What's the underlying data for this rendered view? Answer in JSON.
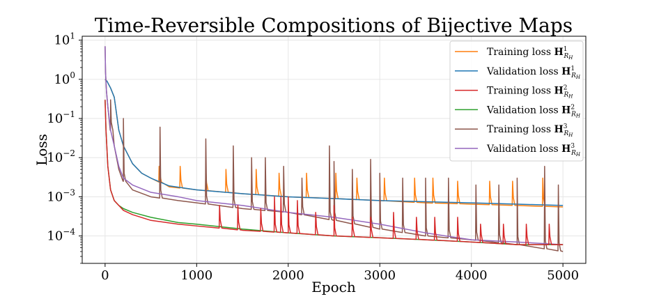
{
  "chart_data": {
    "type": "line",
    "title": "Time-Reversible Compositions of Bijective Maps",
    "xlabel": "Epoch",
    "ylabel": "Loss",
    "xlim": [
      -250,
      5250
    ],
    "ylim_log10": [
      -4.7,
      1.1
    ],
    "yscale": "log",
    "grid": true,
    "legend_position": "top-right",
    "x_ticks": [
      0,
      1000,
      2000,
      3000,
      4000,
      5000
    ],
    "y_ticks": [
      {
        "exp": 1,
        "label": "10^1"
      },
      {
        "exp": 0,
        "label": "10^0"
      },
      {
        "exp": -1,
        "label": "10^-1"
      },
      {
        "exp": -2,
        "label": "10^-2"
      },
      {
        "exp": -3,
        "label": "10^-3"
      },
      {
        "exp": -4,
        "label": "10^-4"
      }
    ],
    "series": [
      {
        "name": "Training loss H^1_{R_H}",
        "label_base": "Training loss",
        "sup": "1",
        "color": "#ff7f0e",
        "x": [
          0,
          20,
          60,
          100,
          150,
          200,
          300,
          400,
          500,
          700,
          1000,
          1500,
          2000,
          2500,
          3000,
          3500,
          4000,
          4500,
          5000
        ],
        "values": [
          1.0,
          0.9,
          0.6,
          0.35,
          0.05,
          0.02,
          0.007,
          0.004,
          0.003,
          0.0018,
          0.0015,
          0.0012,
          0.001,
          0.0009,
          0.0008,
          0.0007,
          0.00065,
          0.0006,
          0.00055
        ],
        "spikes": [
          {
            "x": 590,
            "peak": 0.006
          },
          {
            "x": 820,
            "peak": 0.006
          },
          {
            "x": 1100,
            "peak": 0.005
          },
          {
            "x": 1320,
            "peak": 0.005
          },
          {
            "x": 1650,
            "peak": 0.005
          },
          {
            "x": 1900,
            "peak": 0.004
          },
          {
            "x": 2200,
            "peak": 0.004
          },
          {
            "x": 2520,
            "peak": 0.004
          },
          {
            "x": 2750,
            "peak": 0.003
          },
          {
            "x": 3050,
            "peak": 0.003
          },
          {
            "x": 3380,
            "peak": 0.003
          },
          {
            "x": 3580,
            "peak": 0.003
          },
          {
            "x": 3850,
            "peak": 0.0025
          },
          {
            "x": 4200,
            "peak": 0.0025
          },
          {
            "x": 4450,
            "peak": 0.0025
          },
          {
            "x": 4780,
            "peak": 0.003
          }
        ]
      },
      {
        "name": "Validation loss H^1_{R_H}",
        "label_base": "Validation loss",
        "sup": "1",
        "color": "#1f77b4",
        "x": [
          0,
          20,
          60,
          100,
          150,
          200,
          300,
          400,
          500,
          700,
          1000,
          1500,
          2000,
          2500,
          3000,
          3500,
          4000,
          4500,
          5000
        ],
        "values": [
          1.0,
          0.9,
          0.6,
          0.35,
          0.05,
          0.02,
          0.007,
          0.004,
          0.003,
          0.0019,
          0.0015,
          0.0012,
          0.001,
          0.0009,
          0.0008,
          0.00075,
          0.0007,
          0.00065,
          0.0006
        ],
        "spikes": []
      },
      {
        "name": "Training loss H^2_{R_H}",
        "label_base": "Training loss",
        "sup": "2",
        "color": "#d62728",
        "x": [
          0,
          10,
          30,
          60,
          100,
          150,
          200,
          300,
          500,
          800,
          1000,
          1500,
          2000,
          2500,
          3000,
          3500,
          4000,
          4500,
          5000
        ],
        "values": [
          0.3,
          0.05,
          0.006,
          0.0015,
          0.0008,
          0.0006,
          0.00045,
          0.00035,
          0.00025,
          0.0002,
          0.00018,
          0.00014,
          0.00012,
          0.0001,
          9e-05,
          8e-05,
          7e-05,
          6e-05,
          6e-05
        ],
        "spikes": [
          {
            "x": 1250,
            "peak": 0.0006
          },
          {
            "x": 1450,
            "peak": 0.0006
          },
          {
            "x": 1700,
            "peak": 0.0005
          },
          {
            "x": 1850,
            "peak": 0.001
          },
          {
            "x": 1920,
            "peak": 0.001
          },
          {
            "x": 2000,
            "peak": 0.001
          },
          {
            "x": 2100,
            "peak": 0.0008
          },
          {
            "x": 2300,
            "peak": 0.0004
          },
          {
            "x": 2500,
            "peak": 0.0006
          },
          {
            "x": 2700,
            "peak": 0.0003
          },
          {
            "x": 2900,
            "peak": 0.0003
          },
          {
            "x": 3150,
            "peak": 0.0004
          },
          {
            "x": 3400,
            "peak": 0.0003
          },
          {
            "x": 3600,
            "peak": 0.0003
          },
          {
            "x": 3850,
            "peak": 0.0003
          },
          {
            "x": 4100,
            "peak": 0.0002
          },
          {
            "x": 4350,
            "peak": 0.0002
          },
          {
            "x": 4600,
            "peak": 0.0002
          },
          {
            "x": 4850,
            "peak": 0.0002
          }
        ]
      },
      {
        "name": "Validation loss H^2_{R_H}",
        "label_base": "Validation loss",
        "sup": "2",
        "color": "#2ca02c",
        "x": [
          0,
          10,
          30,
          60,
          100,
          150,
          200,
          300,
          500,
          800,
          1000,
          1500,
          2000,
          2500,
          3000,
          3500,
          4000,
          4500,
          5000
        ],
        "values": [
          0.3,
          0.05,
          0.006,
          0.0015,
          0.0008,
          0.0006,
          0.0005,
          0.0004,
          0.0003,
          0.00022,
          0.0002,
          0.00015,
          0.00012,
          0.0001,
          9e-05,
          8e-05,
          7e-05,
          6e-05,
          6e-05
        ],
        "spikes": []
      },
      {
        "name": "Training loss H^3_{R_H}",
        "label_base": "Training loss",
        "sup": "3",
        "color": "#8c564b",
        "x": [
          0,
          5,
          15,
          30,
          60,
          100,
          150,
          200,
          300,
          500,
          800,
          1000,
          1500,
          2000,
          2500,
          3000,
          3500,
          4000,
          4500,
          5000
        ],
        "values": [
          7.0,
          1.5,
          0.5,
          0.2,
          0.05,
          0.02,
          0.005,
          0.0025,
          0.0015,
          0.001,
          0.0008,
          0.0007,
          0.0005,
          0.0004,
          0.00025,
          0.00015,
          0.0001,
          8e-05,
          6e-05,
          4e-05
        ],
        "spikes": [
          {
            "x": 60,
            "peak": 0.3
          },
          {
            "x": 200,
            "peak": 0.1
          },
          {
            "x": 600,
            "peak": 0.06
          },
          {
            "x": 1100,
            "peak": 0.03
          },
          {
            "x": 1400,
            "peak": 0.02
          },
          {
            "x": 1600,
            "peak": 0.01
          },
          {
            "x": 1750,
            "peak": 0.01
          },
          {
            "x": 1950,
            "peak": 0.006
          },
          {
            "x": 2150,
            "peak": 0.003
          },
          {
            "x": 2450,
            "peak": 0.02
          },
          {
            "x": 2500,
            "peak": 0.008
          },
          {
            "x": 2700,
            "peak": 0.005
          },
          {
            "x": 2900,
            "peak": 0.009
          },
          {
            "x": 3000,
            "peak": 0.004
          },
          {
            "x": 3250,
            "peak": 0.003
          },
          {
            "x": 3500,
            "peak": 0.003
          },
          {
            "x": 3750,
            "peak": 0.003
          },
          {
            "x": 4050,
            "peak": 0.002
          },
          {
            "x": 4300,
            "peak": 0.002
          },
          {
            "x": 4500,
            "peak": 0.003
          },
          {
            "x": 4800,
            "peak": 0.006
          },
          {
            "x": 4950,
            "peak": 0.002
          }
        ]
      },
      {
        "name": "Validation loss H^3_{R_H}",
        "label_base": "Validation loss",
        "sup": "3",
        "color": "#9467bd",
        "x": [
          0,
          5,
          15,
          30,
          60,
          100,
          150,
          200,
          300,
          500,
          800,
          1000,
          1500,
          2000,
          2500,
          3000,
          3500,
          4000,
          4500,
          5000
        ],
        "values": [
          7.0,
          1.5,
          0.5,
          0.2,
          0.05,
          0.02,
          0.006,
          0.003,
          0.002,
          0.0013,
          0.001,
          0.0008,
          0.0006,
          0.0004,
          0.0003,
          0.0002,
          0.00012,
          8e-05,
          7e-05,
          6e-05
        ],
        "spikes": []
      }
    ]
  }
}
